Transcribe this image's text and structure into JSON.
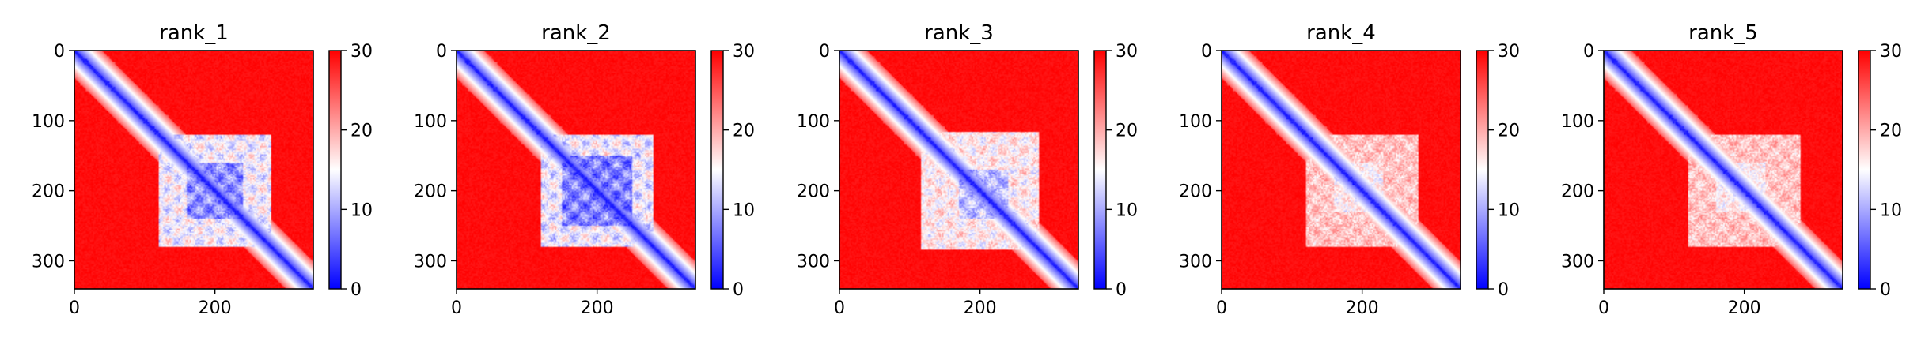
{
  "chart_data": [
    {
      "type": "heatmap",
      "title": "rank_1",
      "xlim": [
        0,
        340
      ],
      "ylim": [
        340,
        0
      ],
      "xticks": [
        0,
        200
      ],
      "yticks": [
        0,
        100,
        200,
        300
      ],
      "colorbar": {
        "min": 0,
        "max": 30,
        "ticks": [
          0,
          10,
          20,
          30
        ],
        "colormap": "bwr"
      },
      "features": {
        "diagonal": true,
        "block_range": [
          120,
          280
        ],
        "block_core": [
          160,
          240
        ],
        "block_strength": 0.75
      }
    },
    {
      "type": "heatmap",
      "title": "rank_2",
      "xlim": [
        0,
        340
      ],
      "ylim": [
        340,
        0
      ],
      "xticks": [
        0,
        200
      ],
      "yticks": [
        0,
        100,
        200,
        300
      ],
      "colorbar": {
        "min": 0,
        "max": 30,
        "ticks": [
          0,
          10,
          20,
          30
        ],
        "colormap": "bwr"
      },
      "features": {
        "diagonal": true,
        "block_range": [
          120,
          280
        ],
        "block_core": [
          150,
          250
        ],
        "block_strength": 0.8
      }
    },
    {
      "type": "heatmap",
      "title": "rank_3",
      "xlim": [
        0,
        340
      ],
      "ylim": [
        340,
        0
      ],
      "xticks": [
        0,
        200
      ],
      "yticks": [
        0,
        100,
        200,
        300
      ],
      "colorbar": {
        "min": 0,
        "max": 30,
        "ticks": [
          0,
          10,
          20,
          30
        ],
        "colormap": "bwr"
      },
      "features": {
        "diagonal": true,
        "block_range": [
          115,
          285
        ],
        "block_core": [
          170,
          240
        ],
        "block_strength": 0.6
      }
    },
    {
      "type": "heatmap",
      "title": "rank_4",
      "xlim": [
        0,
        340
      ],
      "ylim": [
        340,
        0
      ],
      "xticks": [
        0,
        200
      ],
      "yticks": [
        0,
        100,
        200,
        300
      ],
      "colorbar": {
        "min": 0,
        "max": 30,
        "ticks": [
          0,
          10,
          20,
          30
        ],
        "colormap": "bwr"
      },
      "features": {
        "diagonal": true,
        "block_range": [
          120,
          280
        ],
        "block_core": [
          160,
          230
        ],
        "block_strength": 0.35
      }
    },
    {
      "type": "heatmap",
      "title": "rank_5",
      "xlim": [
        0,
        340
      ],
      "ylim": [
        340,
        0
      ],
      "xticks": [
        0,
        200
      ],
      "yticks": [
        0,
        100,
        200,
        300
      ],
      "colorbar": {
        "min": 0,
        "max": 30,
        "ticks": [
          0,
          10,
          20,
          30
        ],
        "colormap": "bwr"
      },
      "features": {
        "diagonal": true,
        "block_range": [
          120,
          280
        ],
        "block_core": [
          160,
          230
        ],
        "block_strength": 0.35
      }
    }
  ]
}
